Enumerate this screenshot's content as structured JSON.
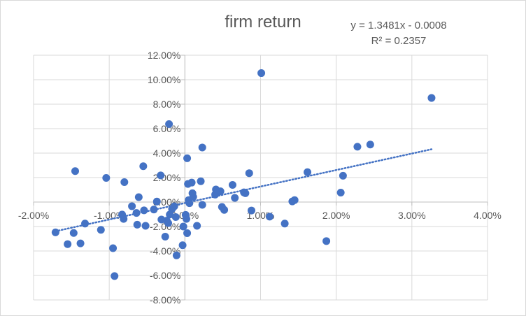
{
  "chart_data": {
    "type": "scatter",
    "title": "firm return",
    "trendline": {
      "equation": "y = 1.3481x - 0.0008",
      "r_squared": "R² = 0.2357",
      "slope": 1.3481,
      "intercept": -0.0008,
      "style": "dotted",
      "color": "#4472C4"
    },
    "xlim": [
      -0.02,
      0.04
    ],
    "ylim": [
      -0.08,
      0.12
    ],
    "xticks": [
      -0.02,
      -0.01,
      0.0,
      0.01,
      0.02,
      0.03,
      0.04
    ],
    "xtick_labels": [
      "-2.00%",
      "-1.00%",
      "0.00%",
      "1.00%",
      "2.00%",
      "3.00%",
      "4.00%"
    ],
    "yticks": [
      0.12,
      0.1,
      0.08,
      0.06,
      0.04,
      0.02,
      0.0,
      -0.02,
      -0.04,
      -0.06,
      -0.08
    ],
    "ytick_labels": [
      "12.00%",
      "10.00%",
      "8.00%",
      "6.00%",
      "4.00%",
      "2.00%",
      "0.00%",
      "-2.00%",
      "-4.00%",
      "-6.00%",
      "-8.00%"
    ],
    "grid": true,
    "marker_color": "#4472C4",
    "points": [
      [
        -0.0171,
        -0.0248
      ],
      [
        -0.0145,
        0.0253
      ],
      [
        -0.0147,
        -0.0253
      ],
      [
        -0.0155,
        -0.0344
      ],
      [
        -0.0138,
        -0.0338
      ],
      [
        -0.0132,
        -0.0176
      ],
      [
        -0.0111,
        -0.0227
      ],
      [
        -0.0104,
        0.0197
      ],
      [
        -0.0095,
        -0.0377
      ],
      [
        -0.0093,
        -0.0605
      ],
      [
        -0.0083,
        -0.0102
      ],
      [
        -0.0081,
        -0.0138
      ],
      [
        -0.008,
        0.0163
      ],
      [
        -0.007,
        -0.0034
      ],
      [
        -0.0064,
        -0.0089
      ],
      [
        -0.0063,
        -0.0185
      ],
      [
        -0.0061,
        0.004
      ],
      [
        -0.0055,
        0.0293
      ],
      [
        -0.0054,
        -0.0068
      ],
      [
        -0.0052,
        -0.0194
      ],
      [
        -0.0041,
        -0.0061
      ],
      [
        -0.0037,
        0.0004
      ],
      [
        -0.0032,
        0.0218
      ],
      [
        -0.0031,
        -0.0143
      ],
      [
        -0.0026,
        -0.0283
      ],
      [
        -0.0024,
        -0.0152
      ],
      [
        -0.0022,
        -0.0172
      ],
      [
        -0.0021,
        0.0637
      ],
      [
        -0.002,
        -0.0102
      ],
      [
        -0.0017,
        -0.0057
      ],
      [
        -0.0014,
        -0.0035
      ],
      [
        -0.0012,
        -0.0123
      ],
      [
        -0.0011,
        -0.0436
      ],
      [
        -0.0003,
        -0.0353
      ],
      [
        -0.0002,
        -0.02
      ],
      [
        0.0001,
        -0.0105
      ],
      [
        0.0002,
        -0.0138
      ],
      [
        0.0003,
        -0.0254
      ],
      [
        0.0003,
        0.0358
      ],
      [
        0.0004,
        0.0148
      ],
      [
        0.0005,
        0.0016
      ],
      [
        0.0006,
        -0.0009
      ],
      [
        0.0009,
        0.0159
      ],
      [
        0.001,
        0.0072
      ],
      [
        0.0011,
        0.0042
      ],
      [
        0.0016,
        -0.0194
      ],
      [
        0.0021,
        0.017
      ],
      [
        0.0023,
        -0.0023
      ],
      [
        0.0023,
        0.0446
      ],
      [
        0.004,
        0.0061
      ],
      [
        0.0041,
        0.0103
      ],
      [
        0.0047,
        0.0088
      ],
      [
        0.0049,
        -0.004
      ],
      [
        0.0052,
        -0.0064
      ],
      [
        0.0063,
        0.014
      ],
      [
        0.0066,
        0.0034
      ],
      [
        0.0078,
        0.0079
      ],
      [
        0.008,
        0.0072
      ],
      [
        0.0085,
        0.0236
      ],
      [
        0.0088,
        -0.0069
      ],
      [
        0.0101,
        0.1054
      ],
      [
        0.0112,
        -0.0119
      ],
      [
        0.0132,
        -0.0176
      ],
      [
        0.0142,
        0.0005
      ],
      [
        0.0145,
        0.0016
      ],
      [
        0.0162,
        0.0244
      ],
      [
        0.0187,
        -0.0319
      ],
      [
        0.0206,
        0.0077
      ],
      [
        0.0209,
        0.0215
      ],
      [
        0.0228,
        0.0452
      ],
      [
        0.0245,
        0.047
      ],
      [
        0.0326,
        0.0851
      ]
    ]
  }
}
